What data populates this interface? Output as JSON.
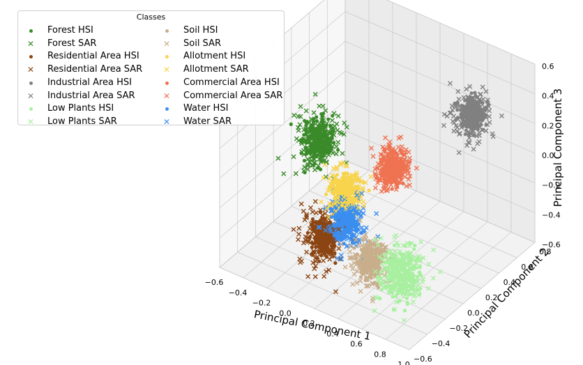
{
  "chart_data": {
    "type": "scatter",
    "title": "",
    "xlabel": "Principal Component 1",
    "ylabel": "Principal Component 2",
    "zlabel": "Principal Component 3",
    "xlim": [
      -0.6,
      1.0
    ],
    "ylim": [
      -0.6,
      0.8
    ],
    "zlim": [
      -0.6,
      0.6
    ],
    "x_ticks": [
      "−0.6",
      "−0.4",
      "−0.2",
      "0.0",
      "0.2",
      "0.4",
      "0.6",
      "0.8",
      "1.0"
    ],
    "y_ticks": [
      "−0.6",
      "−0.4",
      "−0.2",
      "0.0",
      "0.2",
      "0.4",
      "0.6",
      "0.8"
    ],
    "z_ticks": [
      "−0.6",
      "−0.4",
      "−0.2",
      "0.0",
      "0.2",
      "0.4",
      "0.6"
    ],
    "grid": true,
    "legend": {
      "title": "Classes",
      "placement": "top-left",
      "columns": 2
    },
    "series": [
      {
        "name": "Forest HSI",
        "marker": "dot",
        "color": "#3a8a2a",
        "center": [
          -0.3,
          0.1,
          0.0
        ],
        "spread": [
          0.05,
          0.05,
          0.06
        ]
      },
      {
        "name": "Forest SAR",
        "marker": "x",
        "color": "#3a8a2a",
        "center": [
          -0.3,
          0.1,
          0.0
        ],
        "spread": [
          0.08,
          0.08,
          0.09
        ]
      },
      {
        "name": "Residential Area HSI",
        "marker": "dot",
        "color": "#8b4513",
        "center": [
          -0.1,
          -0.1,
          -0.48
        ],
        "spread": [
          0.04,
          0.04,
          0.06
        ]
      },
      {
        "name": "Residential Area SAR",
        "marker": "x",
        "color": "#8b4513",
        "center": [
          -0.1,
          -0.1,
          -0.48
        ],
        "spread": [
          0.07,
          0.07,
          0.09
        ]
      },
      {
        "name": "Industrial Area HSI",
        "marker": "dot",
        "color": "#808080",
        "center": [
          0.7,
          0.5,
          0.3
        ],
        "spread": [
          0.04,
          0.04,
          0.05
        ]
      },
      {
        "name": "Industrial Area SAR",
        "marker": "x",
        "color": "#808080",
        "center": [
          0.7,
          0.5,
          0.3
        ],
        "spread": [
          0.07,
          0.07,
          0.08
        ]
      },
      {
        "name": "Low Plants HSI",
        "marker": "dot",
        "color": "#a8f0a0",
        "center": [
          0.7,
          -0.3,
          -0.35
        ],
        "spread": [
          0.06,
          0.06,
          0.07
        ]
      },
      {
        "name": "Low Plants SAR",
        "marker": "x",
        "color": "#a8f0a0",
        "center": [
          0.7,
          -0.3,
          -0.35
        ],
        "spread": [
          0.09,
          0.09,
          0.1
        ]
      },
      {
        "name": "Soil HSI",
        "marker": "dot",
        "color": "#c9ae8c",
        "center": [
          0.45,
          -0.3,
          -0.35
        ],
        "spread": [
          0.04,
          0.04,
          0.05
        ]
      },
      {
        "name": "Soil SAR",
        "marker": "x",
        "color": "#c9ae8c",
        "center": [
          0.45,
          -0.3,
          -0.35
        ],
        "spread": [
          0.07,
          0.07,
          0.08
        ]
      },
      {
        "name": "Allotment HSI",
        "marker": "dot",
        "color": "#f7d44c",
        "center": [
          0.0,
          0.0,
          -0.2
        ],
        "spread": [
          0.04,
          0.04,
          0.05
        ]
      },
      {
        "name": "Allotment SAR",
        "marker": "x",
        "color": "#f7d44c",
        "center": [
          0.0,
          0.0,
          -0.2
        ],
        "spread": [
          0.06,
          0.06,
          0.07
        ]
      },
      {
        "name": "Commercial Area HSI",
        "marker": "dot",
        "color": "#ef7251",
        "center": [
          0.25,
          0.2,
          -0.05
        ],
        "spread": [
          0.04,
          0.04,
          0.05
        ]
      },
      {
        "name": "Commercial Area SAR",
        "marker": "x",
        "color": "#ef7251",
        "center": [
          0.25,
          0.2,
          -0.05
        ],
        "spread": [
          0.06,
          0.06,
          0.07
        ]
      },
      {
        "name": "Water HSI",
        "marker": "dot",
        "color": "#3a8ef0",
        "center": [
          0.05,
          -0.05,
          -0.35
        ],
        "spread": [
          0.04,
          0.04,
          0.05
        ]
      },
      {
        "name": "Water SAR",
        "marker": "x",
        "color": "#3a8ef0",
        "center": [
          0.05,
          -0.05,
          -0.35
        ],
        "spread": [
          0.07,
          0.07,
          0.08
        ]
      }
    ]
  }
}
